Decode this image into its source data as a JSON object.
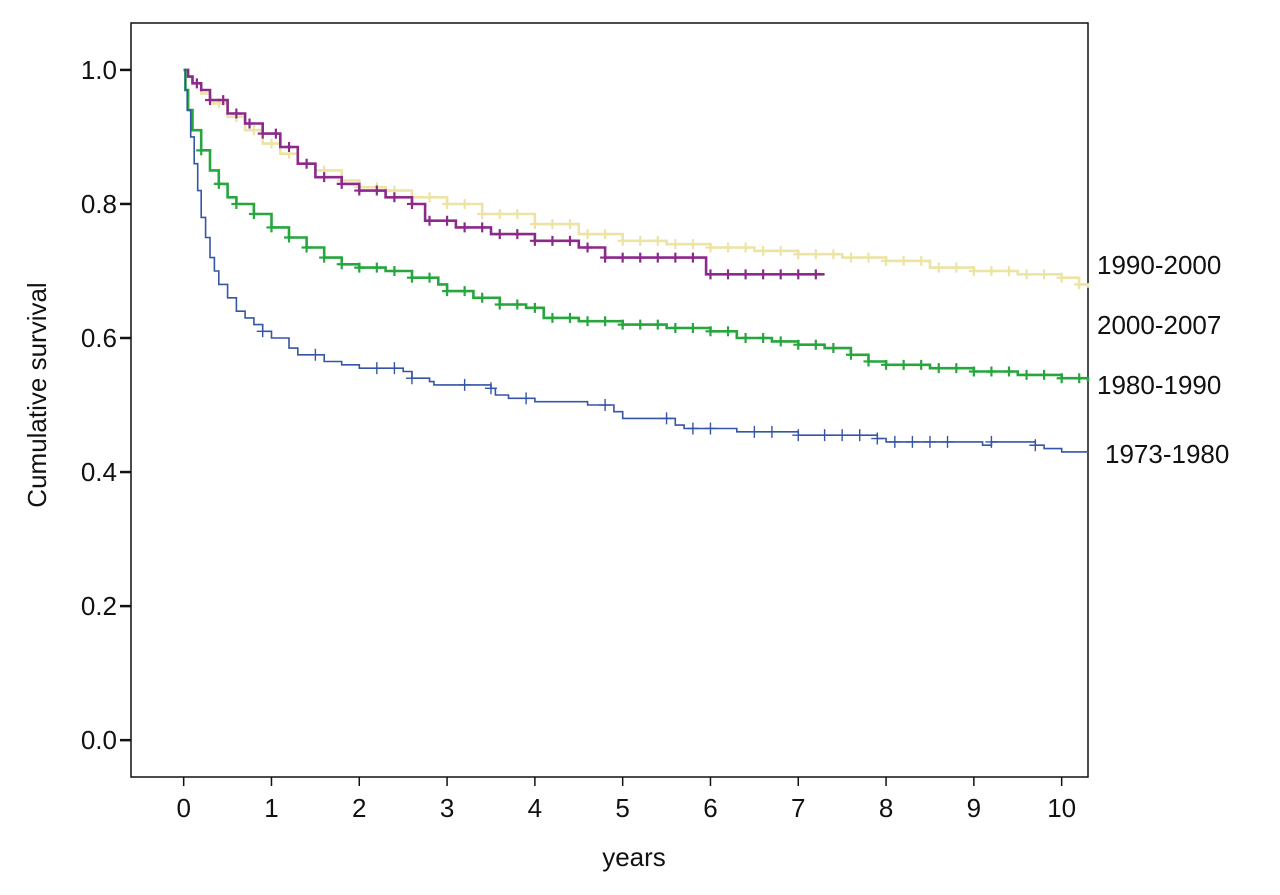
{
  "chart_data": {
    "type": "line",
    "subtype": "kaplan-meier",
    "title": "",
    "xlabel": "years",
    "ylabel": "Cumulative survival",
    "xlim": [
      -0.6,
      10.3
    ],
    "ylim": [
      -0.055,
      1.07
    ],
    "x_ticks": [
      0,
      1,
      2,
      3,
      4,
      5,
      6,
      7,
      8,
      9,
      10
    ],
    "x_tick_labels": [
      "0",
      "1",
      "2",
      "3",
      "4",
      "5",
      "6",
      "7",
      "8",
      "9",
      "10"
    ],
    "y_ticks": [
      0.0,
      0.2,
      0.4,
      0.6,
      0.8,
      1.0
    ],
    "y_tick_labels": [
      "0.0",
      "0.2",
      "0.4",
      "0.6",
      "0.8",
      "1.0"
    ],
    "grid": false,
    "legend": "direct-labels-right",
    "series": [
      {
        "name": "1990-2000",
        "color": "#ece4a4",
        "steps": [
          [
            0,
            1.0
          ],
          [
            0.05,
            0.99
          ],
          [
            0.1,
            0.98
          ],
          [
            0.2,
            0.965
          ],
          [
            0.3,
            0.95
          ],
          [
            0.5,
            0.93
          ],
          [
            0.7,
            0.91
          ],
          [
            0.9,
            0.89
          ],
          [
            1.1,
            0.875
          ],
          [
            1.3,
            0.86
          ],
          [
            1.5,
            0.85
          ],
          [
            1.8,
            0.835
          ],
          [
            2.0,
            0.825
          ],
          [
            2.3,
            0.82
          ],
          [
            2.6,
            0.81
          ],
          [
            3.0,
            0.8
          ],
          [
            3.4,
            0.785
          ],
          [
            4.0,
            0.77
          ],
          [
            4.5,
            0.755
          ],
          [
            5.0,
            0.745
          ],
          [
            5.5,
            0.74
          ],
          [
            6.0,
            0.735
          ],
          [
            6.5,
            0.73
          ],
          [
            7.0,
            0.725
          ],
          [
            7.5,
            0.72
          ],
          [
            8.0,
            0.715
          ],
          [
            8.5,
            0.705
          ],
          [
            9.0,
            0.7
          ],
          [
            9.5,
            0.695
          ],
          [
            10.0,
            0.69
          ],
          [
            10.2,
            0.68
          ],
          [
            10.3,
            0.675
          ]
        ],
        "censor_marks": [
          0.4,
          0.6,
          0.8,
          1.0,
          1.2,
          1.4,
          1.6,
          1.8,
          2.0,
          2.2,
          2.4,
          2.6,
          2.8,
          3.0,
          3.2,
          3.4,
          3.6,
          3.8,
          4.0,
          4.2,
          4.4,
          4.6,
          4.8,
          5.0,
          5.2,
          5.4,
          5.6,
          5.8,
          6.0,
          6.2,
          6.4,
          6.6,
          6.8,
          7.0,
          7.2,
          7.4,
          7.6,
          7.8,
          8.0,
          8.2,
          8.4,
          8.6,
          8.8,
          9.0,
          9.2,
          9.4,
          9.6,
          9.8,
          10.0,
          10.2
        ]
      },
      {
        "name": "2000-2007",
        "color": "#8b2a8a",
        "steps": [
          [
            0,
            1.0
          ],
          [
            0.05,
            0.99
          ],
          [
            0.1,
            0.98
          ],
          [
            0.2,
            0.97
          ],
          [
            0.3,
            0.955
          ],
          [
            0.5,
            0.935
          ],
          [
            0.7,
            0.92
          ],
          [
            0.9,
            0.905
          ],
          [
            1.1,
            0.885
          ],
          [
            1.3,
            0.86
          ],
          [
            1.5,
            0.84
          ],
          [
            1.8,
            0.83
          ],
          [
            2.0,
            0.82
          ],
          [
            2.3,
            0.81
          ],
          [
            2.6,
            0.8
          ],
          [
            2.75,
            0.775
          ],
          [
            3.1,
            0.765
          ],
          [
            3.5,
            0.755
          ],
          [
            4.0,
            0.745
          ],
          [
            4.5,
            0.735
          ],
          [
            4.8,
            0.72
          ],
          [
            5.4,
            0.72
          ],
          [
            5.95,
            0.695
          ],
          [
            7.3,
            0.695
          ]
        ],
        "censor_marks": [
          0.15,
          0.3,
          0.45,
          0.6,
          0.75,
          0.9,
          1.05,
          1.2,
          1.4,
          1.6,
          1.8,
          2.0,
          2.2,
          2.4,
          2.6,
          2.8,
          3.0,
          3.2,
          3.4,
          3.6,
          3.8,
          4.0,
          4.2,
          4.4,
          4.6,
          4.8,
          5.0,
          5.2,
          5.4,
          5.6,
          5.8,
          6.0,
          6.2,
          6.4,
          6.6,
          6.8,
          7.0,
          7.2
        ]
      },
      {
        "name": "1980-1990",
        "color": "#27a63e",
        "steps": [
          [
            0,
            1.0
          ],
          [
            0.02,
            0.97
          ],
          [
            0.05,
            0.94
          ],
          [
            0.1,
            0.91
          ],
          [
            0.2,
            0.88
          ],
          [
            0.3,
            0.85
          ],
          [
            0.4,
            0.83
          ],
          [
            0.5,
            0.81
          ],
          [
            0.6,
            0.8
          ],
          [
            0.8,
            0.785
          ],
          [
            1.0,
            0.765
          ],
          [
            1.2,
            0.75
          ],
          [
            1.4,
            0.735
          ],
          [
            1.6,
            0.72
          ],
          [
            1.8,
            0.71
          ],
          [
            2.0,
            0.705
          ],
          [
            2.3,
            0.7
          ],
          [
            2.6,
            0.69
          ],
          [
            2.9,
            0.68
          ],
          [
            3.0,
            0.67
          ],
          [
            3.3,
            0.66
          ],
          [
            3.6,
            0.65
          ],
          [
            3.9,
            0.645
          ],
          [
            4.1,
            0.63
          ],
          [
            4.5,
            0.625
          ],
          [
            5.0,
            0.62
          ],
          [
            5.5,
            0.615
          ],
          [
            6.0,
            0.61
          ],
          [
            6.3,
            0.6
          ],
          [
            6.7,
            0.595
          ],
          [
            7.0,
            0.59
          ],
          [
            7.3,
            0.585
          ],
          [
            7.6,
            0.575
          ],
          [
            7.8,
            0.565
          ],
          [
            8.0,
            0.56
          ],
          [
            8.5,
            0.555
          ],
          [
            9.0,
            0.55
          ],
          [
            9.5,
            0.545
          ],
          [
            10.0,
            0.54
          ],
          [
            10.3,
            0.535
          ]
        ],
        "censor_marks": [
          0.2,
          0.4,
          0.6,
          0.8,
          1.0,
          1.2,
          1.4,
          1.6,
          1.8,
          2.0,
          2.2,
          2.4,
          2.6,
          2.8,
          3.0,
          3.2,
          3.4,
          3.6,
          3.8,
          4.0,
          4.2,
          4.4,
          4.6,
          4.8,
          5.0,
          5.2,
          5.4,
          5.6,
          5.8,
          6.0,
          6.2,
          6.4,
          6.6,
          6.8,
          7.0,
          7.2,
          7.4,
          7.6,
          7.8,
          8.0,
          8.2,
          8.4,
          8.6,
          8.8,
          9.0,
          9.2,
          9.4,
          9.6,
          9.8,
          10.0,
          10.2
        ]
      },
      {
        "name": "1973-1980",
        "color": "#3555a6",
        "steps": [
          [
            0,
            1.0
          ],
          [
            0.02,
            0.97
          ],
          [
            0.04,
            0.94
          ],
          [
            0.08,
            0.9
          ],
          [
            0.12,
            0.86
          ],
          [
            0.16,
            0.82
          ],
          [
            0.2,
            0.78
          ],
          [
            0.25,
            0.75
          ],
          [
            0.3,
            0.72
          ],
          [
            0.35,
            0.7
          ],
          [
            0.4,
            0.68
          ],
          [
            0.5,
            0.66
          ],
          [
            0.6,
            0.64
          ],
          [
            0.7,
            0.63
          ],
          [
            0.8,
            0.62
          ],
          [
            0.9,
            0.61
          ],
          [
            1.0,
            0.6
          ],
          [
            1.2,
            0.585
          ],
          [
            1.3,
            0.575
          ],
          [
            1.6,
            0.565
          ],
          [
            1.8,
            0.56
          ],
          [
            2.0,
            0.555
          ],
          [
            2.5,
            0.55
          ],
          [
            2.6,
            0.54
          ],
          [
            2.8,
            0.535
          ],
          [
            2.85,
            0.53
          ],
          [
            3.5,
            0.525
          ],
          [
            3.55,
            0.515
          ],
          [
            3.7,
            0.51
          ],
          [
            4.0,
            0.505
          ],
          [
            4.6,
            0.5
          ],
          [
            4.9,
            0.49
          ],
          [
            5.0,
            0.48
          ],
          [
            5.6,
            0.47
          ],
          [
            5.7,
            0.465
          ],
          [
            6.3,
            0.46
          ],
          [
            7.0,
            0.455
          ],
          [
            7.9,
            0.45
          ],
          [
            8.0,
            0.445
          ],
          [
            9.1,
            0.44
          ],
          [
            9.2,
            0.445
          ],
          [
            9.7,
            0.44
          ],
          [
            9.8,
            0.435
          ],
          [
            10.0,
            0.43
          ],
          [
            10.3,
            0.43
          ]
        ],
        "censor_marks": [
          0.9,
          1.5,
          2.2,
          2.4,
          2.6,
          3.2,
          3.5,
          3.9,
          4.8,
          5.5,
          5.8,
          6.0,
          6.5,
          6.7,
          7.0,
          7.3,
          7.5,
          7.7,
          7.9,
          8.1,
          8.3,
          8.5,
          8.7,
          9.2,
          9.7
        ]
      }
    ],
    "labels": [
      {
        "text": "1990-2000",
        "series": "1990-2000"
      },
      {
        "text": "2000-2007",
        "series": "2000-2007"
      },
      {
        "text": "1980-1990",
        "series": "1980-1990"
      },
      {
        "text": "1973-1980",
        "series": "1973-1980"
      }
    ]
  }
}
